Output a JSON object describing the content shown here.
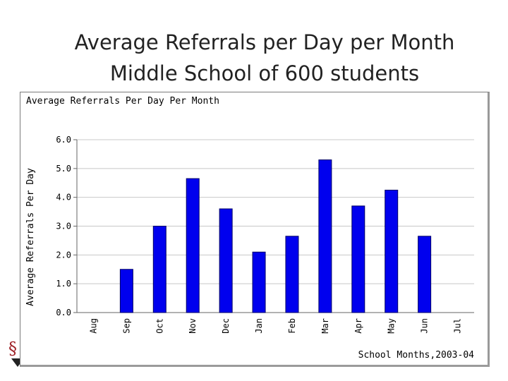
{
  "slide": {
    "title_line1": "Average Referrals per Day per Month",
    "title_line2": "Middle School of 600 students"
  },
  "chart_data": {
    "type": "bar",
    "title": "Average Referrals Per Day Per Month",
    "ylabel": "Average Referrals Per Day",
    "xlabel": "School Months,2003-04",
    "categories": [
      "Aug",
      "Sep",
      "Oct",
      "Nov",
      "Dec",
      "Jan",
      "Feb",
      "Mar",
      "Apr",
      "May",
      "Jun",
      "Jul"
    ],
    "values": [
      0,
      1.5,
      3.0,
      4.65,
      3.6,
      2.1,
      2.65,
      5.3,
      3.7,
      4.25,
      2.65,
      0
    ],
    "ylim": [
      0,
      6
    ],
    "yticks": [
      "0.0",
      "1.0",
      "2.0",
      "3.0",
      "4.0",
      "5.0",
      "6.0"
    ],
    "grid": true,
    "bar_color": "#0000ee"
  },
  "icons": {
    "logo": "school-logo-icon"
  }
}
